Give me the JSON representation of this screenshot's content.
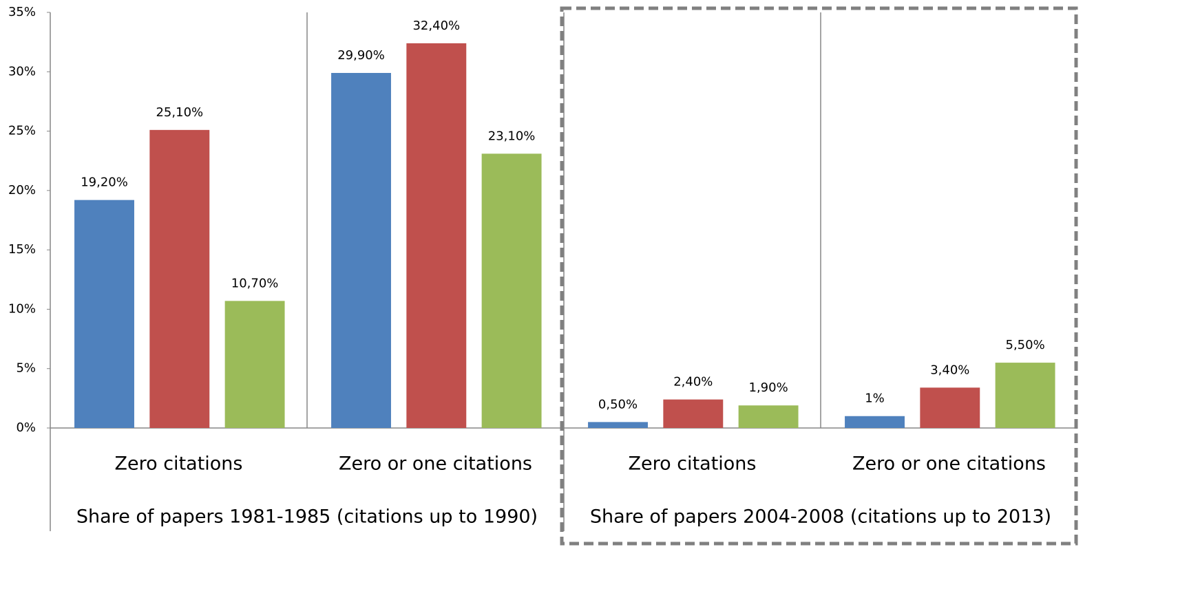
{
  "chart_data": {
    "type": "bar",
    "groups": [
      {
        "label": "Share of papers 1981-1985 (citations up to 1990)",
        "categories": [
          "Zero citations",
          "Zero or one citations"
        ]
      },
      {
        "label": "Share of papers 2004-2008 (citations up to 2013)",
        "categories": [
          "Zero citations",
          "Zero or one citations"
        ]
      }
    ],
    "series": [
      {
        "color": "#4f81bd",
        "values": [
          19.2,
          29.9,
          0.5,
          1
        ],
        "value_labels": [
          "19,20%",
          "29,90%",
          "0,50%",
          "1%"
        ]
      },
      {
        "color": "#c0504d",
        "values": [
          25.1,
          32.4,
          2.4,
          3.4
        ],
        "value_labels": [
          "25,10%",
          "32,40%",
          "2,40%",
          "3,40%"
        ]
      },
      {
        "color": "#9bbb59",
        "values": [
          10.7,
          23.1,
          1.9,
          5.5
        ],
        "value_labels": [
          "10,70%",
          "23,10%",
          "1,90%",
          "5,50%"
        ]
      }
    ],
    "ylim": [
      0,
      35
    ],
    "yticks": [
      {
        "value": 0,
        "label": "0%"
      },
      {
        "value": 5,
        "label": "5%"
      },
      {
        "value": 10,
        "label": "10%"
      },
      {
        "value": 15,
        "label": "15%"
      },
      {
        "value": 20,
        "label": "20%"
      },
      {
        "value": 25,
        "label": "25%"
      },
      {
        "value": 30,
        "label": "30%"
      },
      {
        "value": 35,
        "label": "35%"
      }
    ],
    "grid": false
  }
}
